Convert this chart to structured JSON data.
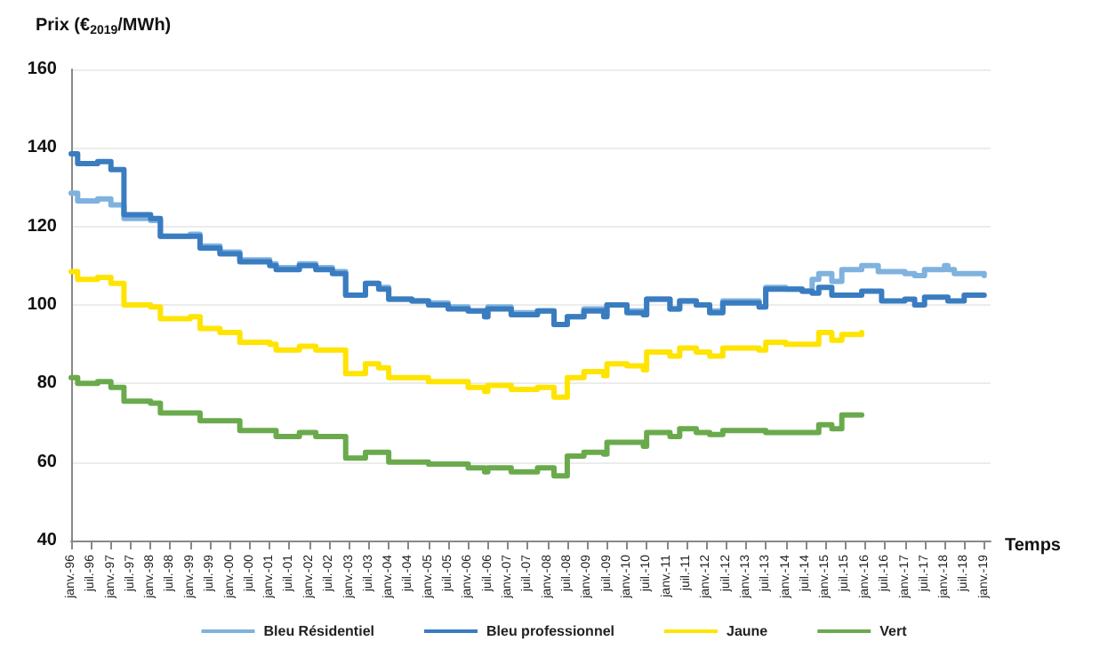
{
  "chart_data": {
    "type": "step",
    "ylabel": "Prix (€$_{2019}$/MWh)",
    "xlabel": "Temps",
    "ylim": [
      40,
      160
    ],
    "yticks": [
      40,
      60,
      80,
      100,
      120,
      140,
      160
    ],
    "xlim": [
      "1996-01",
      "2019-03"
    ],
    "xticks": [
      {
        "value": "1996-01",
        "label": "janv.-96"
      },
      {
        "value": "1996-07",
        "label": "juil.-96"
      },
      {
        "value": "1997-01",
        "label": "janv.-97"
      },
      {
        "value": "1997-07",
        "label": "juil.-97"
      },
      {
        "value": "1998-01",
        "label": "janv.-98"
      },
      {
        "value": "1998-07",
        "label": "juil.-98"
      },
      {
        "value": "1999-01",
        "label": "janv.-99"
      },
      {
        "value": "1999-07",
        "label": "juil.-99"
      },
      {
        "value": "2000-01",
        "label": "janv.-00"
      },
      {
        "value": "2000-07",
        "label": "juil.-00"
      },
      {
        "value": "2001-01",
        "label": "janv.-01"
      },
      {
        "value": "2001-07",
        "label": "juil.-01"
      },
      {
        "value": "2002-01",
        "label": "janv.-02"
      },
      {
        "value": "2002-07",
        "label": "juil.-02"
      },
      {
        "value": "2003-01",
        "label": "janv.-03"
      },
      {
        "value": "2003-07",
        "label": "juil.-03"
      },
      {
        "value": "2004-01",
        "label": "janv.-04"
      },
      {
        "value": "2004-07",
        "label": "juil.-04"
      },
      {
        "value": "2005-01",
        "label": "janv.-05"
      },
      {
        "value": "2005-07",
        "label": "juil.-05"
      },
      {
        "value": "2006-01",
        "label": "janv.-06"
      },
      {
        "value": "2006-07",
        "label": "juil.-06"
      },
      {
        "value": "2007-01",
        "label": "janv.-07"
      },
      {
        "value": "2007-07",
        "label": "juil.-07"
      },
      {
        "value": "2008-01",
        "label": "janv.-08"
      },
      {
        "value": "2008-07",
        "label": "juil.-08"
      },
      {
        "value": "2009-01",
        "label": "janv.-09"
      },
      {
        "value": "2009-07",
        "label": "juil.-09"
      },
      {
        "value": "2010-01",
        "label": "janv.-10"
      },
      {
        "value": "2010-07",
        "label": "juil.-10"
      },
      {
        "value": "2011-01",
        "label": "janv.-11"
      },
      {
        "value": "2011-07",
        "label": "juil.-11"
      },
      {
        "value": "2012-01",
        "label": "janv.-12"
      },
      {
        "value": "2012-07",
        "label": "juil.-12"
      },
      {
        "value": "2013-01",
        "label": "janv.-13"
      },
      {
        "value": "2013-07",
        "label": "juil.-13"
      },
      {
        "value": "2014-01",
        "label": "janv.-14"
      },
      {
        "value": "2014-07",
        "label": "juil.-14"
      },
      {
        "value": "2015-01",
        "label": "janv.-15"
      },
      {
        "value": "2015-07",
        "label": "juil.-15"
      },
      {
        "value": "2016-01",
        "label": "janv.-16"
      },
      {
        "value": "2016-07",
        "label": "juil.-16"
      },
      {
        "value": "2017-01",
        "label": "janv.-17"
      },
      {
        "value": "2017-07",
        "label": "juil.-17"
      },
      {
        "value": "2018-01",
        "label": "janv.-18"
      },
      {
        "value": "2018-07",
        "label": "juil.-18"
      },
      {
        "value": "2019-01",
        "label": "janv.-19"
      }
    ],
    "grid": "y",
    "legend": "bottom",
    "marker": "none",
    "line_style": "solid",
    "series": [
      {
        "name": "Bleu Résidentiel",
        "color": "#7fb2de",
        "x": [
          "1996-01",
          "1996-03",
          "1996-09",
          "1997-01",
          "1997-05",
          "1998-01",
          "1998-04",
          "1999-01",
          "1999-04",
          "1999-10",
          "2000-04",
          "2001-01",
          "2001-03",
          "2001-10",
          "2002-03",
          "2002-08",
          "2002-12",
          "2003-06",
          "2003-10",
          "2004-01",
          "2004-08",
          "2005-01",
          "2005-07",
          "2006-01",
          "2006-06",
          "2006-07",
          "2007-02",
          "2007-10",
          "2008-03",
          "2008-07",
          "2008-12",
          "2009-06",
          "2009-07",
          "2010-01",
          "2010-06",
          "2010-07",
          "2011-02",
          "2011-05",
          "2011-10",
          "2012-02",
          "2012-06",
          "2013-01",
          "2013-05",
          "2013-07",
          "2014-01",
          "2014-06",
          "2014-09",
          "2014-11",
          "2015-03",
          "2015-06",
          "2015-12",
          "2016-05",
          "2017-01",
          "2017-04",
          "2017-07",
          "2018-01",
          "2018-02",
          "2018-04",
          "2019-01"
        ],
        "values": [
          128.5,
          126.5,
          127,
          125.5,
          122,
          121.5,
          117.5,
          118,
          115,
          113.5,
          111.5,
          110.5,
          109.5,
          110.5,
          109.5,
          108.5,
          102.5,
          105.5,
          104.5,
          101.5,
          101,
          100.5,
          99.5,
          98.5,
          97,
          99.5,
          98,
          98.5,
          95,
          97,
          99,
          97.5,
          100,
          98.5,
          97.5,
          101.5,
          99,
          101,
          100,
          98.5,
          101,
          101,
          99.5,
          104.5,
          104,
          103.5,
          106.5,
          108,
          106,
          109,
          110,
          108.5,
          108,
          107.5,
          109,
          110,
          109,
          108,
          107.5
        ]
      },
      {
        "name": "Bleu professionnel",
        "color": "#3a7cc0",
        "x": [
          "1996-01",
          "1996-03",
          "1996-09",
          "1997-01",
          "1997-05",
          "1998-01",
          "1998-04",
          "1999-01",
          "1999-04",
          "1999-10",
          "2000-04",
          "2001-01",
          "2001-03",
          "2001-10",
          "2002-03",
          "2002-08",
          "2002-12",
          "2003-06",
          "2003-10",
          "2004-01",
          "2004-08",
          "2005-01",
          "2005-07",
          "2006-01",
          "2006-06",
          "2006-07",
          "2007-02",
          "2007-10",
          "2008-03",
          "2008-07",
          "2008-12",
          "2009-06",
          "2009-07",
          "2010-01",
          "2010-06",
          "2010-07",
          "2011-02",
          "2011-05",
          "2011-10",
          "2012-02",
          "2012-06",
          "2013-01",
          "2013-05",
          "2013-07",
          "2014-01",
          "2014-06",
          "2014-09",
          "2014-11",
          "2015-03",
          "2015-12",
          "2016-06",
          "2017-01",
          "2017-04",
          "2017-07",
          "2018-01",
          "2018-02",
          "2018-07",
          "2019-01"
        ],
        "values": [
          138.5,
          136,
          136.5,
          134.5,
          123,
          122,
          117.5,
          117.5,
          114.5,
          113,
          111,
          110,
          109,
          110,
          109,
          108,
          102.5,
          105.5,
          104,
          101.5,
          101,
          100,
          99,
          98.5,
          97,
          99,
          97.5,
          98.5,
          95,
          97,
          98.5,
          97,
          100,
          98,
          97.5,
          101.5,
          99,
          101,
          100,
          98,
          100.5,
          100.5,
          99.5,
          104,
          104,
          103.5,
          103,
          104.5,
          102.5,
          103.5,
          101,
          101.5,
          100,
          102,
          102,
          101,
          102.5,
          102.5
        ]
      },
      {
        "name": "Jaune",
        "color": "#ffe400",
        "x": [
          "1996-01",
          "1996-03",
          "1996-09",
          "1997-01",
          "1997-05",
          "1998-01",
          "1998-04",
          "1999-01",
          "1999-04",
          "1999-10",
          "2000-04",
          "2001-01",
          "2001-03",
          "2001-10",
          "2002-03",
          "2002-12",
          "2003-06",
          "2003-10",
          "2004-01",
          "2005-01",
          "2006-01",
          "2006-06",
          "2006-07",
          "2007-02",
          "2007-10",
          "2008-03",
          "2008-07",
          "2008-12",
          "2009-06",
          "2009-07",
          "2010-01",
          "2010-06",
          "2010-07",
          "2011-02",
          "2011-05",
          "2011-10",
          "2012-02",
          "2012-06",
          "2013-05",
          "2013-07",
          "2014-01",
          "2014-11",
          "2015-03",
          "2015-06",
          "2015-12"
        ],
        "values": [
          108.5,
          106.5,
          107,
          105.5,
          100,
          99.5,
          96.5,
          97,
          94,
          93,
          90.5,
          90,
          88.5,
          89.5,
          88.5,
          82.5,
          85,
          84,
          81.5,
          80.5,
          79,
          78,
          79.5,
          78.5,
          79,
          76.5,
          81.5,
          83,
          82,
          85,
          84.5,
          83.5,
          88,
          87,
          89,
          88,
          87,
          89,
          88.5,
          90.5,
          90,
          93,
          91,
          92.5,
          93
        ]
      },
      {
        "name": "Vert",
        "color": "#6aaa4c",
        "x": [
          "1996-01",
          "1996-03",
          "1996-09",
          "1997-01",
          "1997-05",
          "1998-01",
          "1998-04",
          "1999-01",
          "1999-04",
          "2000-04",
          "2001-03",
          "2001-10",
          "2002-03",
          "2002-12",
          "2003-06",
          "2004-01",
          "2005-01",
          "2006-01",
          "2006-06",
          "2006-07",
          "2007-02",
          "2007-10",
          "2008-03",
          "2008-07",
          "2008-12",
          "2009-06",
          "2009-07",
          "2010-06",
          "2010-07",
          "2011-02",
          "2011-05",
          "2011-10",
          "2012-02",
          "2012-06",
          "2013-07",
          "2014-11",
          "2015-03",
          "2015-06",
          "2015-12"
        ],
        "values": [
          81.5,
          80,
          80.5,
          79,
          75.5,
          75,
          72.5,
          72.5,
          70.5,
          68,
          66.5,
          67.5,
          66.5,
          61,
          62.5,
          60,
          59.5,
          58.5,
          57.5,
          58.5,
          57.5,
          58.5,
          56.5,
          61.5,
          62.5,
          62,
          65,
          64,
          67.5,
          66.5,
          68.5,
          67.5,
          67,
          68,
          67.5,
          69.5,
          68.5,
          72,
          72
        ]
      }
    ]
  }
}
